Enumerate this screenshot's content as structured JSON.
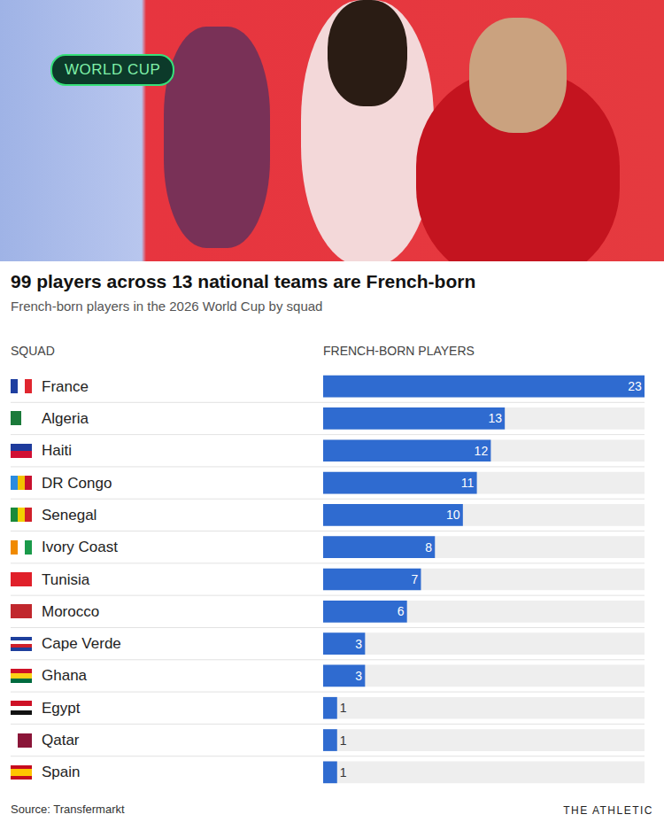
{
  "chart_data": {
    "type": "bar",
    "badge": "WORLD CUP",
    "title": "99 players across 13 national teams are French-born",
    "subtitle": "French-born players in the 2026 World Cup by squad",
    "ylabel": "SQUAD",
    "xlabel": "FRENCH-BORN PLAYERS",
    "categories": [
      "France",
      "Algeria",
      "Haiti",
      "DR Congo",
      "Senegal",
      "Ivory Coast",
      "Tunisia",
      "Morocco",
      "Cape Verde",
      "Ghana",
      "Egypt",
      "Qatar",
      "Spain"
    ],
    "values": [
      23,
      13,
      12,
      11,
      10,
      8,
      7,
      6,
      3,
      3,
      1,
      1,
      1
    ],
    "color": "#2f6bd0",
    "orientation": "horizontal",
    "data_labels": true,
    "tick_labels": false,
    "grid": false,
    "xlim": [
      0,
      23
    ],
    "xticks": [],
    "source": "Source: Transfermarkt",
    "credit": "THE ATHLETIC"
  }
}
